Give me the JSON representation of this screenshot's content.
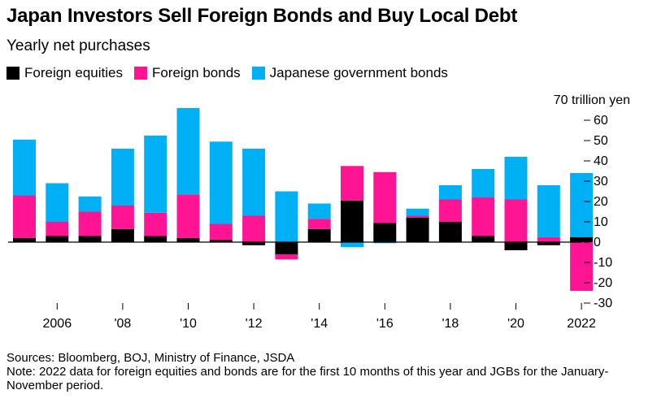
{
  "title": "Japan Investors Sell Foreign Bonds and Buy Local Debt",
  "subtitle": "Yearly net purchases",
  "sources": "Sources: Bloomberg, BOJ, Ministry of Finance, JSDA",
  "note": "Note: 2022 data for foreign equities and bonds are for the first 10 months of this year and JGBs for the January-November period.",
  "colors": {
    "foreign_equities": "#000000",
    "foreign_bonds": "#ff1493",
    "jgb": "#00b0f5"
  },
  "chart_data": {
    "type": "bar",
    "stacked": true,
    "x": [
      2005,
      2006,
      2007,
      2008,
      2009,
      2010,
      2011,
      2012,
      2013,
      2014,
      2015,
      2016,
      2017,
      2018,
      2019,
      2020,
      2021,
      2022
    ],
    "x_tick_labels": [
      {
        "year": 2006,
        "label": "2006"
      },
      {
        "year": 2008,
        "label": "'08"
      },
      {
        "year": 2010,
        "label": "'10"
      },
      {
        "year": 2012,
        "label": "'12"
      },
      {
        "year": 2014,
        "label": "'14"
      },
      {
        "year": 2016,
        "label": "'16"
      },
      {
        "year": 2018,
        "label": "'18"
      },
      {
        "year": 2020,
        "label": "'20"
      },
      {
        "year": 2022,
        "label": "2022"
      }
    ],
    "series": [
      {
        "name": "Foreign equities",
        "color_key": "foreign_equities",
        "values": [
          2,
          3,
          3,
          6.5,
          3,
          2,
          1,
          -1.5,
          -6,
          6.5,
          20.5,
          9.5,
          12,
          10,
          3,
          -4,
          -1.5,
          2.5
        ]
      },
      {
        "name": "Foreign bonds",
        "color_key": "foreign_bonds",
        "values": [
          21,
          7,
          12,
          11.5,
          11.5,
          21.5,
          8,
          13,
          -2.5,
          5,
          17,
          25,
          1,
          11,
          19,
          21,
          2.5,
          -24
        ]
      },
      {
        "name": "Japanese government bonds",
        "color_key": "jgb",
        "values": [
          27.5,
          19,
          7.5,
          28,
          38,
          42.5,
          40.5,
          33,
          25,
          7.5,
          -2.5,
          -0.5,
          3.5,
          7,
          14,
          21,
          25.5,
          31.5
        ]
      }
    ],
    "ylabel": "70 trillion yen",
    "y_ticks": [
      60,
      50,
      40,
      30,
      20,
      10,
      0,
      -10,
      -20,
      -30
    ],
    "y_tick_labels": [
      "60",
      "50",
      "40",
      "30",
      "20",
      "10",
      "0",
      "-10",
      "-20",
      "-30"
    ],
    "ylim": [
      -30,
      70
    ],
    "legend": "top-left",
    "grid": false
  }
}
